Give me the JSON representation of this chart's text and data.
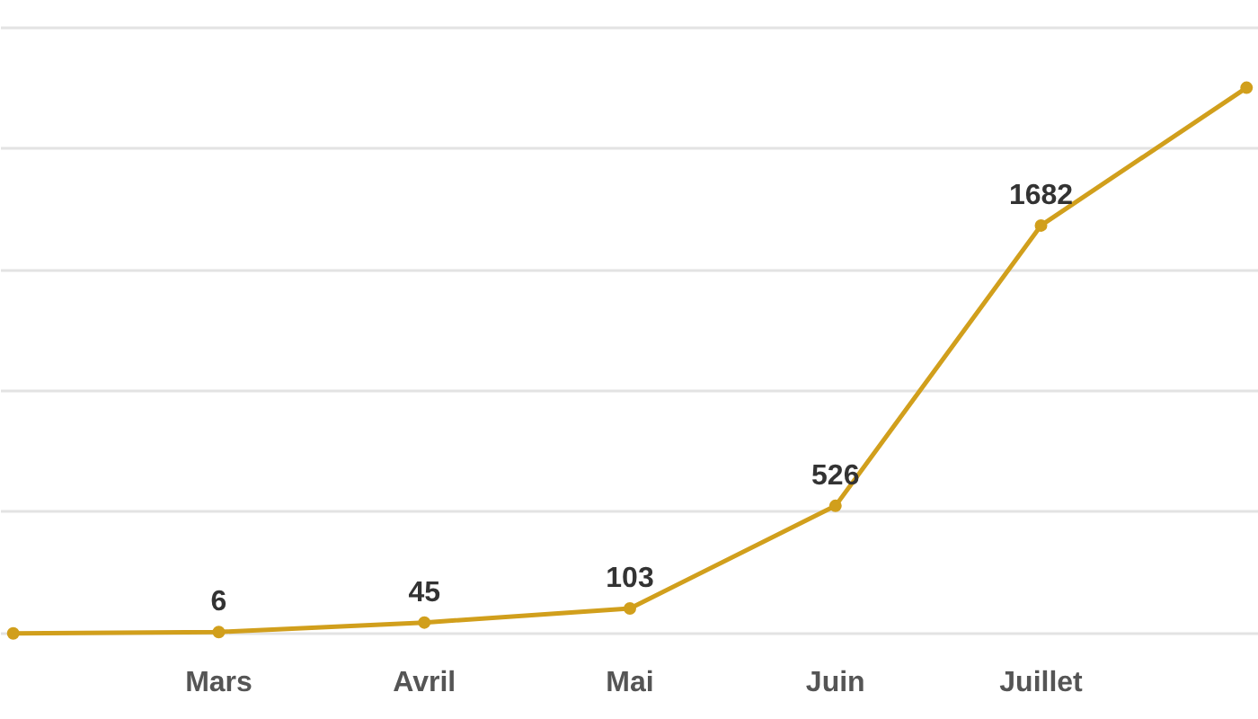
{
  "chart_data": {
    "type": "line",
    "categories": [
      null,
      "Mars",
      "Avril",
      "Mai",
      "Juin",
      "Juillet",
      null
    ],
    "series": [
      {
        "color": "#d19f1c",
        "values": [
          0,
          6,
          45,
          103,
          526,
          1682,
          2250
        ],
        "value_labels": [
          null,
          "6",
          "45",
          "103",
          "526",
          "1682",
          null
        ]
      }
    ],
    "yticks": [
      {
        "value": 0,
        "label": null
      },
      {
        "value": 500,
        "label": null
      },
      {
        "value": 1000,
        "label": null
      },
      {
        "value": 1500,
        "label": null
      },
      {
        "value": 2000,
        "label": null
      },
      {
        "value": 2500,
        "label": null
      }
    ],
    "grid": "y",
    "tick_labels": "x",
    "marker": "circle",
    "line_style": "solid"
  }
}
